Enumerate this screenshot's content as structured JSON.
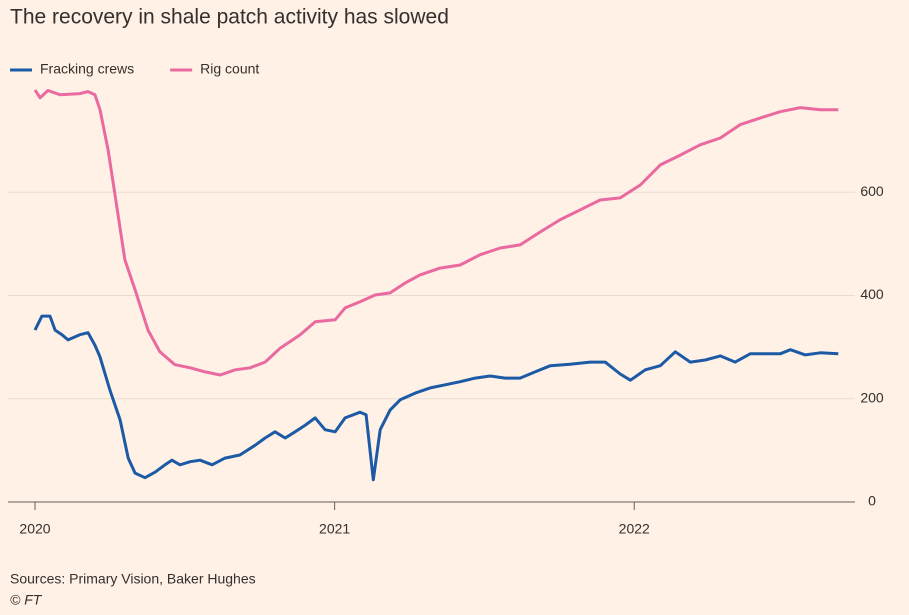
{
  "chart_data": {
    "type": "line",
    "title": "The recovery in shale patch activity has slowed",
    "source": "Sources: Primary Vision, Baker Hughes",
    "credit": "© FT",
    "xlim": [
      2020,
      2022.7
    ],
    "xticks": [
      2020,
      2021,
      2022
    ],
    "ylim": [
      0,
      800
    ],
    "yticks": [
      0,
      200,
      400,
      600
    ],
    "grid": true,
    "legend": "top-left",
    "series": [
      {
        "name": "Fracking crews",
        "color": "#1c5aa6",
        "x": [
          2020.0,
          2020.023,
          2020.05,
          2020.067,
          2020.09,
          2020.11,
          2020.15,
          2020.177,
          2020.2,
          2020.217,
          2020.25,
          2020.284,
          2020.311,
          2020.334,
          2020.367,
          2020.401,
          2020.434,
          2020.457,
          2020.484,
          2020.518,
          2020.551,
          2020.591,
          2020.634,
          2020.684,
          2020.735,
          2020.768,
          2020.801,
          2020.835,
          2020.868,
          2020.902,
          2020.935,
          2020.968,
          2021.002,
          2021.035,
          2021.085,
          2021.105,
          2021.129,
          2021.152,
          2021.185,
          2021.219,
          2021.269,
          2021.319,
          2021.369,
          2021.419,
          2021.469,
          2021.519,
          2021.569,
          2021.619,
          2021.669,
          2021.72,
          2021.786,
          2021.853,
          2021.903,
          2021.953,
          2021.987,
          2022.037,
          2022.087,
          2022.137,
          2022.187,
          2022.237,
          2022.287,
          2022.337,
          2022.387,
          2022.437,
          2022.487,
          2022.521,
          2022.571,
          2022.621,
          2022.681
        ],
        "values": [
          333,
          360,
          360,
          333,
          324,
          314,
          324,
          328,
          304,
          281,
          217,
          159,
          85,
          56,
          47,
          58,
          72,
          81,
          72,
          78,
          81,
          72,
          85,
          91,
          110,
          124,
          136,
          124,
          136,
          149,
          163,
          140,
          136,
          163,
          174,
          169,
          43,
          140,
          178,
          198,
          211,
          221,
          227,
          233,
          240,
          244,
          240,
          240,
          252,
          264,
          267,
          271,
          271,
          248,
          236,
          256,
          264,
          291,
          271,
          275,
          283,
          271,
          287,
          287,
          287,
          295,
          285,
          289,
          287
        ]
      },
      {
        "name": "Rig count",
        "color": "#ea6aa0",
        "x": [
          2020.0,
          2020.017,
          2020.043,
          2020.083,
          2020.15,
          2020.177,
          2020.2,
          2020.217,
          2020.244,
          2020.267,
          2020.3,
          2020.334,
          2020.377,
          2020.417,
          2020.467,
          2020.518,
          2020.568,
          2020.618,
          2020.668,
          2020.718,
          2020.768,
          2020.818,
          2020.885,
          2020.935,
          2021.002,
          2021.035,
          2021.085,
          2021.135,
          2021.185,
          2021.235,
          2021.285,
          2021.352,
          2021.419,
          2021.486,
          2021.553,
          2021.619,
          2021.686,
          2021.753,
          2021.82,
          2021.886,
          2021.953,
          2022.02,
          2022.087,
          2022.154,
          2022.22,
          2022.287,
          2022.354,
          2022.421,
          2022.487,
          2022.554,
          2022.621,
          2022.681
        ],
        "values": [
          798,
          783,
          797,
          789,
          791,
          795,
          789,
          760,
          682,
          595,
          469,
          411,
          333,
          291,
          266,
          260,
          252,
          246,
          256,
          260,
          271,
          298,
          324,
          349,
          353,
          376,
          388,
          401,
          405,
          424,
          440,
          453,
          459,
          479,
          492,
          498,
          523,
          547,
          566,
          585,
          589,
          614,
          653,
          672,
          692,
          705,
          731,
          744,
          756,
          764,
          760,
          760
        ]
      }
    ]
  }
}
